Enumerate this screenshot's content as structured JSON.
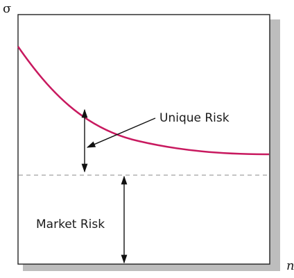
{
  "chart_data": {
    "type": "line",
    "title": "",
    "ylabel": "σ",
    "xlabel": "n",
    "grid": false,
    "legend": "none",
    "series": [
      {
        "role": "total-risk-curve"
      },
      {
        "role": "market-risk-level"
      }
    ],
    "annotations": {
      "unique_risk": "Unique Risk",
      "market_risk": "Market Risk"
    },
    "colors": {
      "curve": "#c8195f",
      "market_line": "#a0a0a0",
      "frame": "#222222",
      "shadow": "#b8b8b8"
    }
  }
}
